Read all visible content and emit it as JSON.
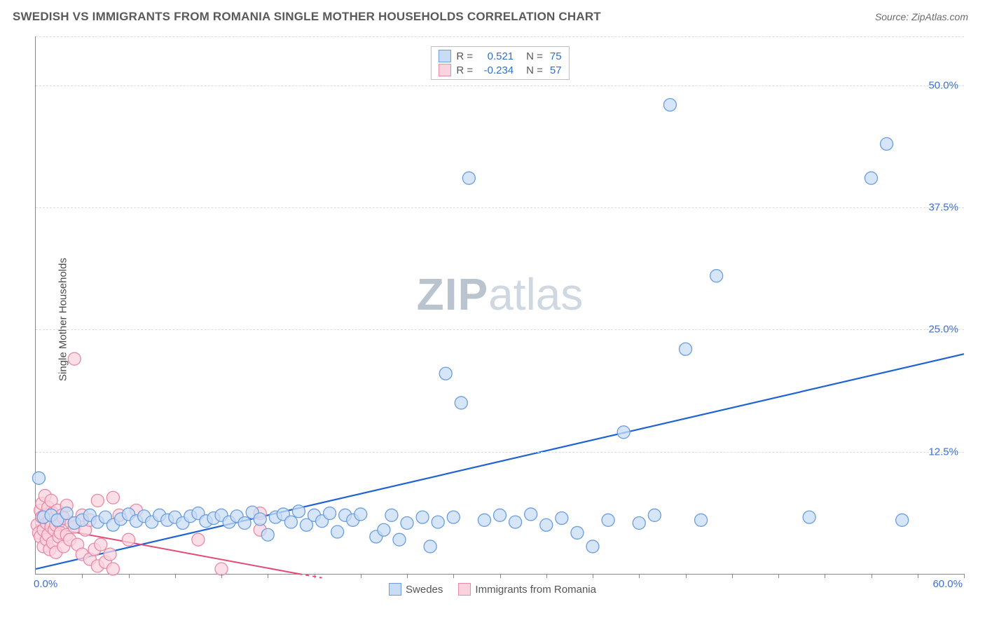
{
  "header": {
    "title": "SWEDISH VS IMMIGRANTS FROM ROMANIA SINGLE MOTHER HOUSEHOLDS CORRELATION CHART",
    "source": "Source: ZipAtlas.com"
  },
  "chart": {
    "type": "scatter",
    "ylabel": "Single Mother Households",
    "xlim": [
      0,
      60
    ],
    "ylim": [
      0,
      55
    ],
    "x_tick_labels": [
      {
        "v": 0,
        "label": "0.0%"
      },
      {
        "v": 60,
        "label": "60.0%"
      }
    ],
    "y_tick_labels": [
      {
        "v": 12.5,
        "label": "12.5%"
      },
      {
        "v": 25,
        "label": "25.0%"
      },
      {
        "v": 37.5,
        "label": "37.5%"
      },
      {
        "v": 50,
        "label": "50.0%"
      }
    ],
    "x_minor_ticks": [
      3,
      6,
      9,
      12,
      15,
      18,
      21,
      24,
      27,
      30,
      33,
      36,
      39,
      42,
      45,
      48,
      51,
      54,
      57,
      60
    ],
    "grid_y": [
      12.5,
      25,
      37.5,
      50,
      55
    ],
    "background_color": "#ffffff",
    "grid_color": "#dcdcdc",
    "axis_color": "#888888",
    "tick_label_color": "#3a6fd8",
    "label_fontsize": 15,
    "watermark": {
      "zip": "ZIP",
      "atlas": "atlas"
    },
    "legend_top": [
      {
        "swatch": "blue",
        "r_label": "R =",
        "r_val": "0.521",
        "n_label": "N =",
        "n_val": "75"
      },
      {
        "swatch": "pink",
        "r_label": "R =",
        "r_val": "-0.234",
        "n_label": "N =",
        "n_val": "57"
      }
    ],
    "legend_bottom": [
      {
        "swatch": "blue",
        "label": "Swedes"
      },
      {
        "swatch": "pink",
        "label": "Immigrants from Romania"
      }
    ],
    "series": {
      "swedes": {
        "color_fill": "#c8dcf5",
        "color_stroke": "#6a9de0",
        "marker_radius": 9,
        "opacity": 0.75,
        "trend": {
          "x1": 0,
          "y1": 0.5,
          "x2": 60,
          "y2": 22.5,
          "color": "#1e63d6",
          "width": 2.2
        },
        "points": [
          [
            0.2,
            9.8
          ],
          [
            0.5,
            5.8
          ],
          [
            1,
            6.0
          ],
          [
            1.4,
            5.5
          ],
          [
            2,
            6.2
          ],
          [
            2.5,
            5.2
          ],
          [
            3,
            5.5
          ],
          [
            3.5,
            6.0
          ],
          [
            4,
            5.3
          ],
          [
            4.5,
            5.8
          ],
          [
            5,
            5.0
          ],
          [
            5.5,
            5.6
          ],
          [
            6,
            6.1
          ],
          [
            6.5,
            5.4
          ],
          [
            7,
            5.9
          ],
          [
            7.5,
            5.3
          ],
          [
            8,
            6.0
          ],
          [
            8.5,
            5.5
          ],
          [
            9,
            5.8
          ],
          [
            9.5,
            5.2
          ],
          [
            10,
            5.9
          ],
          [
            10.5,
            6.2
          ],
          [
            11,
            5.4
          ],
          [
            11.5,
            5.7
          ],
          [
            12,
            6.0
          ],
          [
            12.5,
            5.3
          ],
          [
            13,
            5.9
          ],
          [
            13.5,
            5.2
          ],
          [
            14,
            6.3
          ],
          [
            14.5,
            5.6
          ],
          [
            15,
            4.0
          ],
          [
            15.5,
            5.8
          ],
          [
            16,
            6.1
          ],
          [
            16.5,
            5.3
          ],
          [
            17,
            6.4
          ],
          [
            17.5,
            5.0
          ],
          [
            18,
            6.0
          ],
          [
            18.5,
            5.4
          ],
          [
            19,
            6.2
          ],
          [
            19.5,
            4.3
          ],
          [
            20,
            6.0
          ],
          [
            20.5,
            5.5
          ],
          [
            21,
            6.1
          ],
          [
            22,
            3.8
          ],
          [
            22.5,
            4.5
          ],
          [
            23,
            6.0
          ],
          [
            23.5,
            3.5
          ],
          [
            24,
            5.2
          ],
          [
            25,
            5.8
          ],
          [
            25.5,
            2.8
          ],
          [
            26,
            5.3
          ],
          [
            26.5,
            20.5
          ],
          [
            27,
            5.8
          ],
          [
            27.5,
            17.5
          ],
          [
            28,
            40.5
          ],
          [
            29,
            5.5
          ],
          [
            30,
            6.0
          ],
          [
            31,
            5.3
          ],
          [
            32,
            6.1
          ],
          [
            33,
            5.0
          ],
          [
            34,
            5.7
          ],
          [
            35,
            4.2
          ],
          [
            36,
            2.8
          ],
          [
            37,
            5.5
          ],
          [
            38,
            14.5
          ],
          [
            39,
            5.2
          ],
          [
            40,
            6.0
          ],
          [
            41,
            48.0
          ],
          [
            42,
            23.0
          ],
          [
            43,
            5.5
          ],
          [
            44,
            30.5
          ],
          [
            50,
            5.8
          ],
          [
            54,
            40.5
          ],
          [
            55,
            44.0
          ],
          [
            56,
            5.5
          ]
        ]
      },
      "romania": {
        "color_fill": "#fbd3de",
        "color_stroke": "#e88aa6",
        "marker_radius": 9,
        "opacity": 0.75,
        "trend": {
          "x1": 0,
          "y1": 5.0,
          "x2": 17,
          "y2": 0,
          "color": "#e34b74",
          "width": 2,
          "dashed_after": 17,
          "x3": 18.5
        },
        "points": [
          [
            0.1,
            5.0
          ],
          [
            0.2,
            4.2
          ],
          [
            0.3,
            6.5
          ],
          [
            0.3,
            3.8
          ],
          [
            0.4,
            5.8
          ],
          [
            0.4,
            7.2
          ],
          [
            0.5,
            4.5
          ],
          [
            0.5,
            2.8
          ],
          [
            0.6,
            6.0
          ],
          [
            0.6,
            8.0
          ],
          [
            0.7,
            3.5
          ],
          [
            0.7,
            5.2
          ],
          [
            0.8,
            4.0
          ],
          [
            0.8,
            6.8
          ],
          [
            0.9,
            2.5
          ],
          [
            0.9,
            5.5
          ],
          [
            1.0,
            4.8
          ],
          [
            1.0,
            7.5
          ],
          [
            1.1,
            3.2
          ],
          [
            1.1,
            6.2
          ],
          [
            1.2,
            4.5
          ],
          [
            1.3,
            5.0
          ],
          [
            1.3,
            2.2
          ],
          [
            1.4,
            6.5
          ],
          [
            1.5,
            3.8
          ],
          [
            1.5,
            5.3
          ],
          [
            1.6,
            4.2
          ],
          [
            1.7,
            6.0
          ],
          [
            1.8,
            2.8
          ],
          [
            1.8,
            5.7
          ],
          [
            2.0,
            4.0
          ],
          [
            2.0,
            7.0
          ],
          [
            2.2,
            3.5
          ],
          [
            2.3,
            5.2
          ],
          [
            2.5,
            4.8
          ],
          [
            2.5,
            22.0
          ],
          [
            2.7,
            3.0
          ],
          [
            3.0,
            6.0
          ],
          [
            3.0,
            2.0
          ],
          [
            3.2,
            4.5
          ],
          [
            3.5,
            1.5
          ],
          [
            3.5,
            5.5
          ],
          [
            3.8,
            2.5
          ],
          [
            4.0,
            0.8
          ],
          [
            4.0,
            7.5
          ],
          [
            4.2,
            3.0
          ],
          [
            4.5,
            1.2
          ],
          [
            4.8,
            2.0
          ],
          [
            5.0,
            0.5
          ],
          [
            5.0,
            7.8
          ],
          [
            5.4,
            6.0
          ],
          [
            6.0,
            3.5
          ],
          [
            6.5,
            6.5
          ],
          [
            10.5,
            3.5
          ],
          [
            12.0,
            0.5
          ],
          [
            14.5,
            4.5
          ],
          [
            14.5,
            6.2
          ]
        ]
      }
    }
  }
}
